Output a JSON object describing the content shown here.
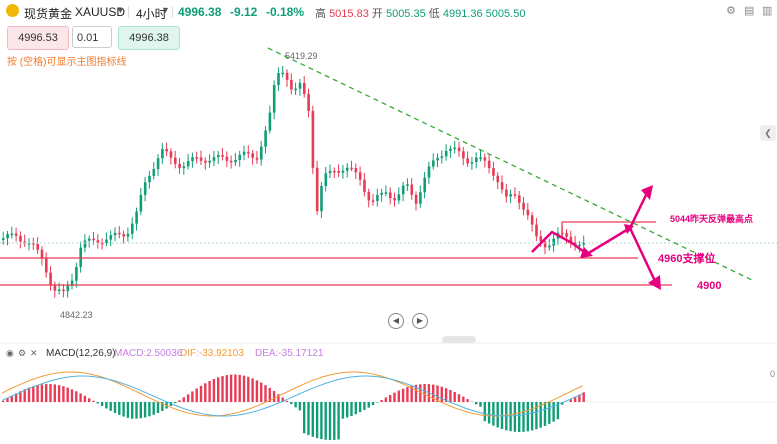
{
  "header": {
    "symbol_name": "现货黄金",
    "symbol_code": "XAUUSD",
    "timeframe": "4小时",
    "last_price": "4996.38",
    "change": "-9.12",
    "change_pct": "-0.18%",
    "high_label": "高",
    "high": "5015.83",
    "open_label": "开",
    "open": "5005.35",
    "low_label": "低",
    "low": "4991.36",
    "close": "5005.50"
  },
  "order_panel": {
    "sell_price": "4996.53",
    "quantity": "0.01",
    "buy_price": "4996.38",
    "hint": "按 (空格)可显示主图指标线"
  },
  "chart_annotations": {
    "peak_label": "5419.29",
    "low_label": "4842.23",
    "resistance_label": "5044昨天反弹最高点",
    "support_label": "4960支撑位",
    "target_label": "4900"
  },
  "macd": {
    "title": "MACD(12,26,9)",
    "macd": "MACD:2.50036",
    "dif": "DIF:-33.92103",
    "dea": "DEA:-35.17121",
    "axis_tick": "0"
  },
  "colors": {
    "up": "#0f9e77",
    "down": "#e83b55",
    "annotation": "#e6007e",
    "trendline": "#3aa83a"
  },
  "chart_data": {
    "type": "candlestick",
    "symbol": "XAUUSD",
    "timeframe": "4小时",
    "peak": 5419.29,
    "trough": 4842.23,
    "levels": [
      {
        "label": "5044昨天反弹最高点",
        "value": 5044
      },
      {
        "label": "4960支撑位",
        "value": 4960
      },
      {
        "label": "4900",
        "value": 4900
      }
    ],
    "macd": {
      "macd": 2.50036,
      "dif": -33.92103,
      "dea": -35.17121
    }
  }
}
